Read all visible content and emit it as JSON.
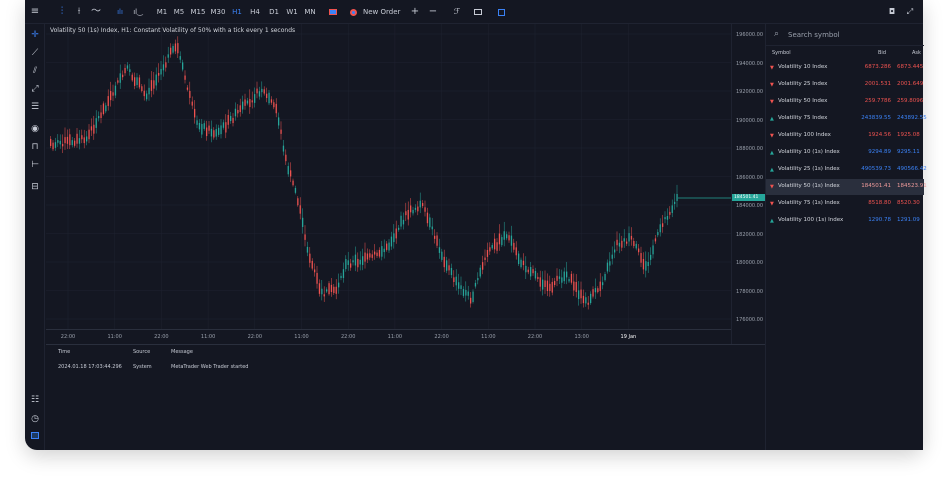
{
  "toolbar": {
    "items": [
      {
        "name": "menu-icon",
        "glyph": "≡"
      },
      {
        "name": "candles-icon",
        "glyph": "⫶"
      },
      {
        "name": "bars-icon",
        "glyph": "⟊"
      },
      {
        "name": "line-chart-icon",
        "glyph": "〜"
      },
      {
        "name": "volume-icon",
        "glyph": "ılı"
      },
      {
        "name": "indicators-icon",
        "glyph": "⩗"
      }
    ],
    "timeframes": [
      "M1",
      "M5",
      "M15",
      "M30",
      "H1",
      "H4",
      "D1",
      "W1",
      "MN"
    ],
    "active_timeframe": "H1",
    "new_order_label": "New Order",
    "plus": "+",
    "minus": "−"
  },
  "chart": {
    "title": "Volatility 50 (1s) Index, H1: Constant Volatility of 50% with a tick every 1 seconds",
    "price_ticks": [
      "196000.00",
      "194000.00",
      "192000.00",
      "190000.00",
      "188000.00",
      "186000.00",
      "184000.00",
      "182000.00",
      "180000.00",
      "178000.00",
      "176000.00"
    ],
    "current_price_tag": "184501.41",
    "time_ticks": [
      "22:00",
      "11:00",
      "22:00",
      "11:00",
      "22:00",
      "11:00",
      "22:00",
      "11:00",
      "22:00",
      "11:00",
      "22:00",
      "13:00",
      "19 Jan"
    ],
    "colors": {
      "up": "#26a69a",
      "down": "#ef5350",
      "grid": "#1f2331",
      "bid_line": "#26a69a"
    }
  },
  "journal": {
    "headers": {
      "time": "Time",
      "source": "Source",
      "message": "Message"
    },
    "rows": [
      {
        "time": "2024.01.18 17:03:44.296",
        "source": "System",
        "message": "MetaTrader Web Trader started"
      }
    ]
  },
  "market_watch": {
    "search_placeholder": "Search symbol",
    "headers": {
      "symbol": "Symbol",
      "bid": "Bid",
      "ask": "Ask"
    },
    "rows": [
      {
        "symbol": "Volatility 10 Index",
        "bid": "6873.286",
        "ask": "6873.445",
        "dir": "down",
        "color": "red"
      },
      {
        "symbol": "Volatility 25 Index",
        "bid": "2001.531",
        "ask": "2001.649",
        "dir": "down",
        "color": "red"
      },
      {
        "symbol": "Volatility 50 Index",
        "bid": "259.7786",
        "ask": "259.8096",
        "dir": "down",
        "color": "red"
      },
      {
        "symbol": "Volatility 75 Index",
        "bid": "243839.55",
        "ask": "243892.55",
        "dir": "up",
        "color": "blue"
      },
      {
        "symbol": "Volatility 100 Index",
        "bid": "1924.56",
        "ask": "1925.08",
        "dir": "down",
        "color": "red"
      },
      {
        "symbol": "Volatility 10 (1s) Index",
        "bid": "9294.89",
        "ask": "9295.11",
        "dir": "up",
        "color": "blue"
      },
      {
        "symbol": "Volatility 25 (1s) Index",
        "bid": "490539.73",
        "ask": "490566.42",
        "dir": "up",
        "color": "blue"
      },
      {
        "symbol": "Volatility 50 (1s) Index",
        "bid": "184501.41",
        "ask": "184523.91",
        "dir": "down",
        "color": "red",
        "selected": true
      },
      {
        "symbol": "Volatility 75 (1s) Index",
        "bid": "8518.80",
        "ask": "8520.30",
        "dir": "down",
        "color": "red"
      },
      {
        "symbol": "Volatility 100 (1s) Index",
        "bid": "1290.78",
        "ask": "1291.09",
        "dir": "up",
        "color": "blue"
      }
    ]
  }
}
